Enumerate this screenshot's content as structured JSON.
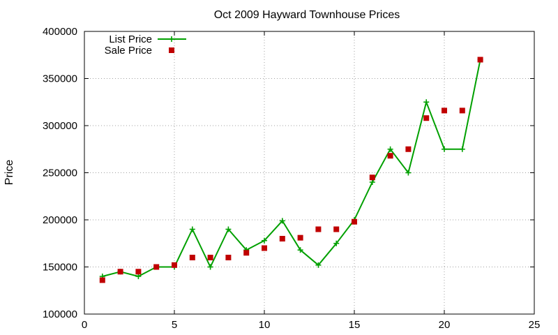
{
  "chart_data": {
    "type": "line",
    "title": "Oct 2009 Hayward Townhouse Prices",
    "xlabel": "",
    "ylabel": "Price",
    "xlim": [
      0,
      25
    ],
    "ylim": [
      100000,
      400000
    ],
    "xticks": [
      "0",
      "5",
      "10",
      "15",
      "20",
      "25"
    ],
    "yticks": [
      "100000",
      "150000",
      "200000",
      "250000",
      "300000",
      "350000",
      "400000"
    ],
    "grid": true,
    "legend_position": "top-left",
    "series": [
      {
        "name": "List Price",
        "type": "line",
        "color": "#00a000",
        "marker": "plus",
        "x": [
          1,
          2,
          3,
          4,
          5,
          6,
          7,
          8,
          9,
          10,
          11,
          12,
          13,
          14,
          15,
          16,
          17,
          18,
          19,
          20,
          21,
          22
        ],
        "y": [
          140000,
          145000,
          140000,
          150000,
          150000,
          190000,
          150000,
          190000,
          168000,
          178000,
          199000,
          168000,
          152000,
          175000,
          200000,
          240000,
          275000,
          250000,
          325000,
          275000,
          275000,
          370000
        ]
      },
      {
        "name": "Sale Price",
        "type": "scatter",
        "color": "#c00000",
        "marker": "square",
        "x": [
          1,
          2,
          3,
          4,
          5,
          6,
          7,
          8,
          9,
          10,
          11,
          12,
          13,
          14,
          15,
          16,
          17,
          18,
          19,
          20,
          21,
          22
        ],
        "y": [
          136000,
          145000,
          145000,
          150000,
          152000,
          160000,
          160000,
          160000,
          165000,
          170000,
          180000,
          181000,
          190000,
          190000,
          198000,
          245000,
          268000,
          275000,
          308000,
          316000,
          316000,
          370000
        ]
      }
    ]
  }
}
